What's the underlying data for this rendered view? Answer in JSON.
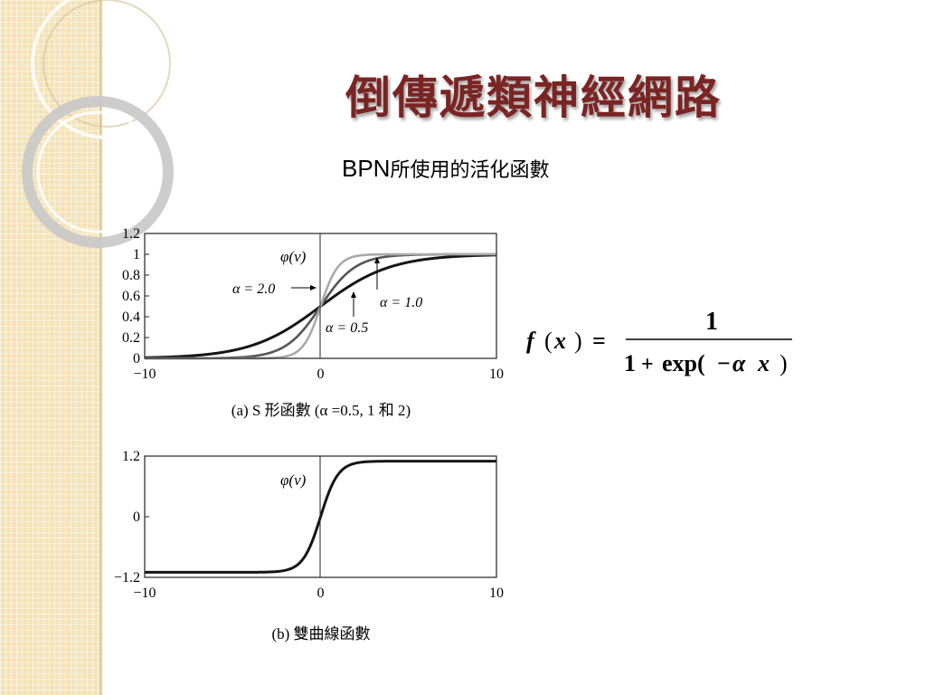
{
  "slide": {
    "title": "倒傳遞類神經網路",
    "subtitle_prefix": "BPN",
    "subtitle_rest": "所使用的活化函數"
  },
  "formula": {
    "lhs_f": "f",
    "lhs_open": "(",
    "lhs_x": "x",
    "lhs_close": ")",
    "equals": "=",
    "numerator": "1",
    "den_one": "1",
    "den_plus": "+",
    "den_exp": "exp(",
    "den_minus": "−",
    "den_alpha": "α",
    "den_x": "x",
    "den_close": ")"
  },
  "chart_data": [
    {
      "type": "line",
      "function_label": "φ(v)",
      "caption": "(a) S 形函數 (α =0.5, 1 和 2)",
      "x_range": [
        -10,
        10
      ],
      "ylim": [
        0,
        1.2
      ],
      "x_ticks": [
        "−10",
        "0",
        "10"
      ],
      "y_ticks": [
        "1.2",
        "1",
        "0.8",
        "0.6",
        "0.4",
        "0.2",
        "0"
      ],
      "y_tick_values": [
        1.2,
        1,
        0.8,
        0.6,
        0.4,
        0.2,
        0
      ],
      "x_tick_values": [
        -10,
        0,
        10
      ],
      "series": [
        {
          "name": "α = 0.5",
          "alpha": 0.5,
          "color": "#151515"
        },
        {
          "name": "α = 1.0",
          "alpha": 1.0,
          "color": "#555555"
        },
        {
          "name": "α = 2.0",
          "alpha": 2.0,
          "color": "#aaaaaa"
        }
      ]
    },
    {
      "type": "line",
      "function_label": "φ(v)",
      "caption": "(b) 雙曲線函數",
      "x_range": [
        -10,
        10
      ],
      "ylim": [
        -1.2,
        1.2
      ],
      "x_ticks": [
        "−10",
        "0",
        "10"
      ],
      "y_ticks": [
        "1.2",
        "0",
        "−1.2"
      ],
      "y_tick_values": [
        1.2,
        0,
        -1.2
      ],
      "x_tick_values": [
        -10,
        0,
        10
      ],
      "series": [
        {
          "saturation": 1.1,
          "slope": 1.0,
          "color": "#151515"
        }
      ]
    }
  ]
}
